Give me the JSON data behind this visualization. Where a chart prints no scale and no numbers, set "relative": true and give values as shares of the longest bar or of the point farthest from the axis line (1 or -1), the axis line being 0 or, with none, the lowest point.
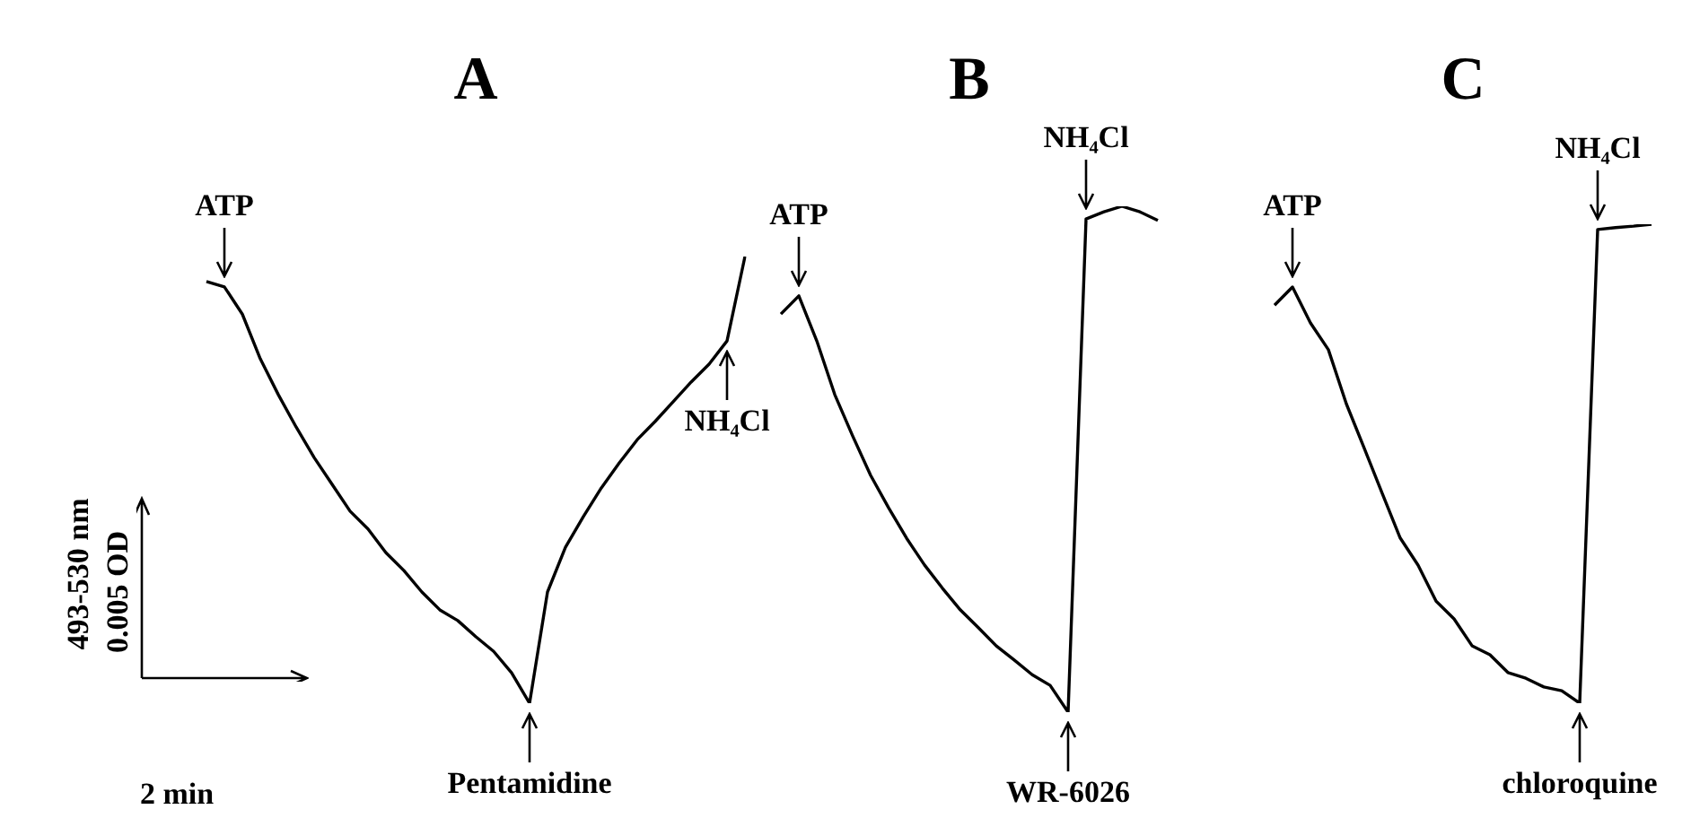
{
  "chart_data": [
    {
      "type": "line",
      "title": "A",
      "relative": true,
      "marker": "none",
      "tick_labels": false,
      "xlabel": "2 min",
      "ylabel": "493-530 nm",
      "categories": [
        null,
        null,
        null,
        null,
        null,
        null,
        null,
        null,
        null,
        null,
        null,
        null,
        null,
        null,
        null,
        null,
        null,
        null,
        null,
        null,
        null,
        null,
        null,
        null,
        null,
        null,
        null,
        null,
        null,
        null,
        null
      ],
      "series": [
        {
          "color": "#000000",
          "values": [
            0.944,
            0.932,
            0.871,
            0.771,
            0.691,
            0.618,
            0.55,
            0.49,
            0.43,
            0.39,
            0.337,
            0.297,
            0.249,
            0.209,
            0.185,
            0.149,
            0.116,
            0.068,
            0,
            0.249,
            0.349,
            0.418,
            0.482,
            0.538,
            0.59,
            0.631,
            0.675,
            0.719,
            0.759,
            0.811,
            1
          ]
        }
      ],
      "annotations": [
        "0.005 OD",
        {
          "text": "ATP",
          "y": 0.932
        },
        {
          "text": "Pentamidine",
          "y": 0
        },
        {
          "text": "NH₄Cl",
          "y": 0.811
        }
      ]
    },
    {
      "type": "line",
      "title": "B",
      "relative": true,
      "marker": "none",
      "tick_labels": false,
      "categories": [
        null,
        null,
        null,
        null,
        null,
        null,
        null,
        null,
        null,
        null,
        null,
        null,
        null,
        null,
        null,
        null,
        null,
        null,
        null,
        null,
        null,
        null
      ],
      "series": [
        {
          "color": "#000000",
          "values": [
            0.787,
            0.823,
            0.734,
            0.628,
            0.546,
            0.468,
            0.404,
            0.344,
            0.291,
            0.245,
            0.202,
            0.167,
            0.131,
            0.103,
            0.074,
            0.053,
            0,
            0.975,
            0.989,
            1,
            0.989,
            0.972
          ]
        }
      ],
      "annotations": [
        {
          "text": "ATP",
          "y": 0.823
        },
        {
          "text": "WR-6026",
          "y": 0
        },
        {
          "text": "NH₄Cl",
          "y": 0.975
        }
      ]
    },
    {
      "type": "line",
      "title": "C",
      "relative": true,
      "marker": "none",
      "tick_labels": false,
      "categories": [
        null,
        null,
        null,
        null,
        null,
        null,
        null,
        null,
        null,
        null,
        null,
        null,
        null,
        null,
        null,
        null,
        null,
        null,
        null,
        null,
        null,
        null
      ],
      "series": [
        {
          "color": "#000000",
          "values": [
            0.831,
            0.869,
            0.794,
            0.738,
            0.625,
            0.532,
            0.438,
            0.345,
            0.288,
            0.213,
            0.176,
            0.12,
            0.101,
            0.064,
            0.052,
            0.034,
            0.026,
            0,
            0.989,
            0.993,
            0.996,
            1
          ]
        }
      ],
      "annotations": [
        {
          "text": "ATP",
          "y": 0.869
        },
        {
          "text": "chloroquine",
          "y": 0
        },
        {
          "text": "NH₄Cl",
          "y": 0.989
        }
      ]
    }
  ]
}
